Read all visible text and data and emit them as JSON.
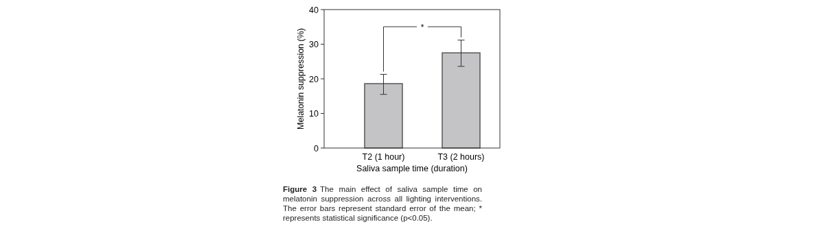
{
  "chart_data": {
    "type": "bar",
    "title": "Figure 3",
    "xlabel": "Saliva sample time (duration)",
    "ylabel": "Melatonin suppression (%)",
    "categories": [
      "T2 (1 hour)",
      "T3 (2 hours)"
    ],
    "values": [
      18.6,
      27.5
    ],
    "color": "#c4c4c6",
    "errors": [
      [
        15.5,
        21.3
      ],
      [
        23.6,
        31.2
      ]
    ],
    "ylim": [
      0,
      40
    ],
    "yticks": [
      0,
      10,
      20,
      30,
      40
    ],
    "annotations": [
      {
        "text": "*",
        "x": "T3 (2 hours)",
        "y": 31.2
      },
      "The main effect of saliva sample time on melatonin suppression across all lighting interventions. The error bars represent standard error of the mean; * represents statistical significance (p<0.05)."
    ]
  }
}
